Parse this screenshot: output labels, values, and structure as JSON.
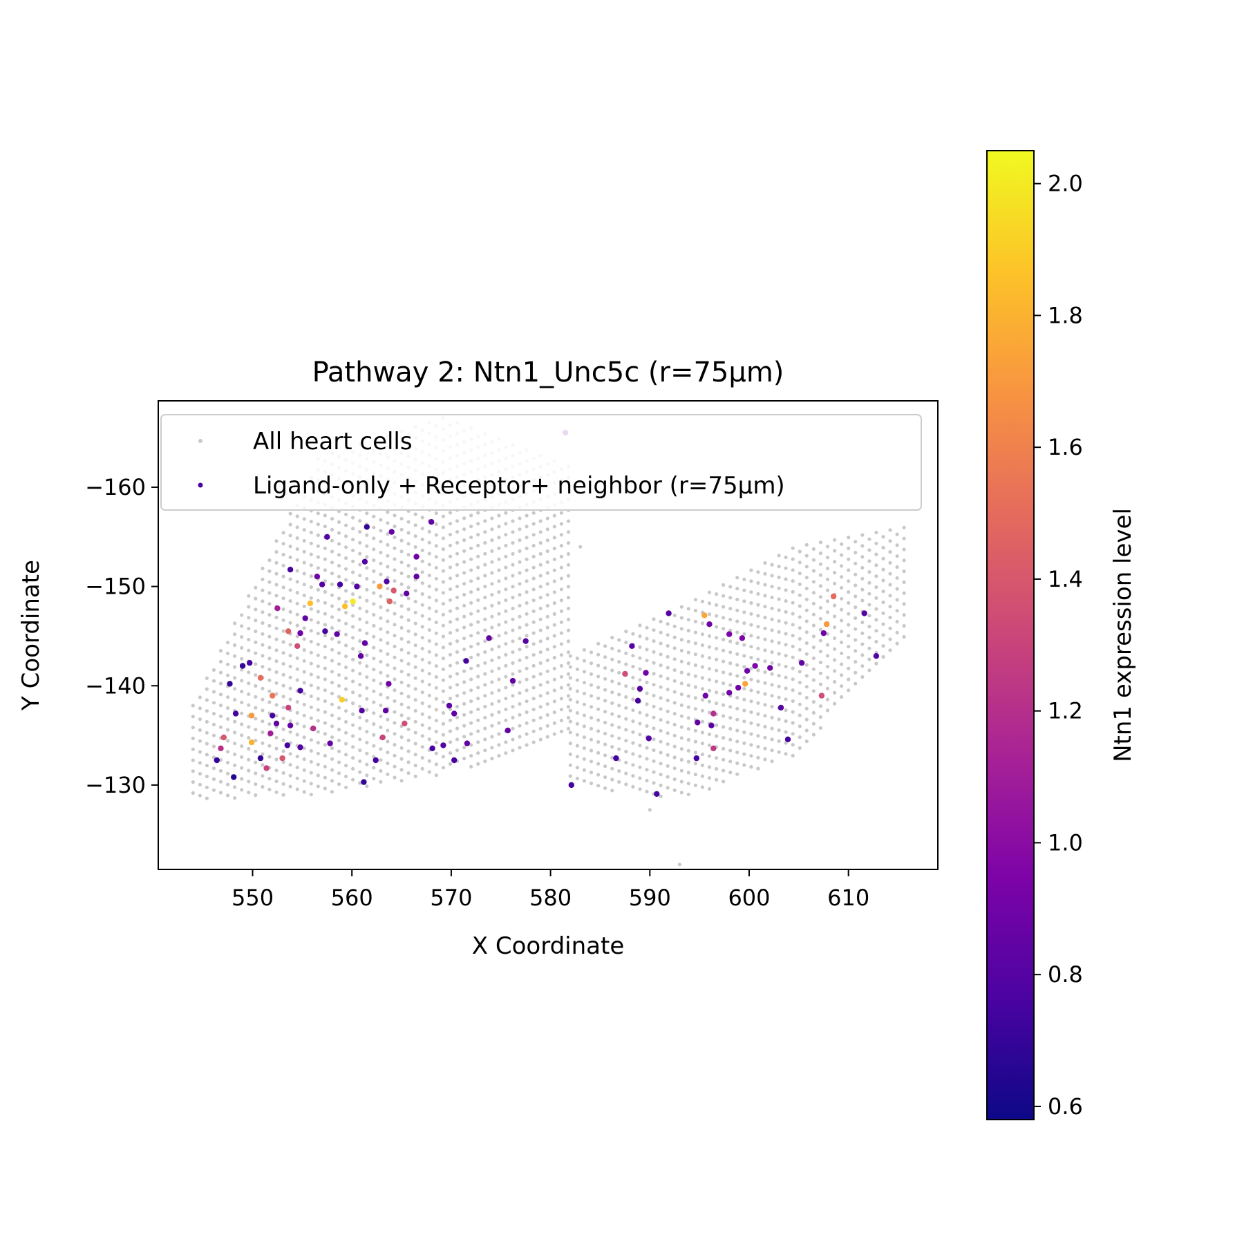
{
  "chart_data": {
    "type": "scatter",
    "title": "Pathway 2: Ntn1_Unc5c (r=75μm)",
    "xlabel": "X Coordinate",
    "ylabel": "Y Coordinate",
    "xlim": [
      540.5,
      619
    ],
    "ylim": [
      -168.7,
      -121.5
    ],
    "y_inverted": true,
    "x_ticks": [
      550,
      560,
      570,
      580,
      590,
      600,
      610
    ],
    "y_ticks": [
      -160,
      -150,
      -140,
      -130
    ],
    "grid": false,
    "legend_position": "upper-left",
    "legend": [
      {
        "label": "All heart cells",
        "color": "#c8c8c8"
      },
      {
        "label": "Ligand-only + Receptor+ neighbor (r=75μm)",
        "color": "#4b03a1"
      }
    ],
    "colorbar": {
      "label": "Ntn1 expression level",
      "colormap": "plasma",
      "min": 0.58,
      "max": 2.05,
      "ticks": [
        0.6,
        0.8,
        1.0,
        1.2,
        1.4,
        1.6,
        1.8,
        2.0
      ]
    },
    "background_series": {
      "name": "All heart cells",
      "color": "#c8c8c8",
      "regions": [
        {
          "x": [
            544,
            582
          ],
          "y_top": [
            -138,
            -163,
            -167,
            -162
          ],
          "y_bottom": [
            -128.5,
            -129,
            -131,
            -135
          ]
        },
        {
          "x": [
            582,
            616
          ],
          "y_top": [
            -143,
            -148,
            -154,
            -156
          ],
          "y_bottom": [
            -130,
            -128.5,
            -133,
            -145
          ]
        }
      ],
      "sparse_points": [
        [
          581.5,
          -165.5
        ],
        [
          583,
          -154
        ],
        [
          590,
          -127.5
        ],
        [
          593,
          -122
        ]
      ]
    },
    "ligand_points": [
      [
        581.5,
        -165.5,
        0.9
      ],
      [
        561.5,
        -156,
        0.7
      ],
      [
        557.5,
        -155,
        0.8
      ],
      [
        564,
        -155.5,
        0.85
      ],
      [
        568,
        -156.5,
        0.85
      ],
      [
        566.5,
        -153,
        0.9
      ],
      [
        561.3,
        -152.5,
        0.8
      ],
      [
        553.8,
        -151.7,
        0.75
      ],
      [
        556.5,
        -151,
        0.9
      ],
      [
        566.5,
        -151,
        0.85
      ],
      [
        557,
        -150.2,
        0.8
      ],
      [
        558.8,
        -150.2,
        0.75
      ],
      [
        560.5,
        -150,
        0.8
      ],
      [
        562.8,
        -150,
        1.7
      ],
      [
        563.5,
        -150.5,
        0.8
      ],
      [
        564.2,
        -149.6,
        1.4
      ],
      [
        565.5,
        -149.3,
        0.85
      ],
      [
        555.8,
        -148.3,
        1.85
      ],
      [
        559.3,
        -148,
        1.85
      ],
      [
        560.1,
        -148.5,
        2.0
      ],
      [
        563.8,
        -148.5,
        1.45
      ],
      [
        552.5,
        -147.8,
        1.1
      ],
      [
        555.3,
        -146.8,
        0.85
      ],
      [
        553.6,
        -145.5,
        1.45
      ],
      [
        554.8,
        -145.3,
        0.9
      ],
      [
        557.3,
        -145.5,
        0.75
      ],
      [
        558.5,
        -145.2,
        0.85
      ],
      [
        554.5,
        -144,
        1.35
      ],
      [
        561.3,
        -144.3,
        0.85
      ],
      [
        573.8,
        -144.8,
        0.85
      ],
      [
        577.5,
        -144.5,
        0.8
      ],
      [
        560.9,
        -143,
        0.85
      ],
      [
        571.5,
        -142.5,
        0.75
      ],
      [
        549,
        -142,
        0.7
      ],
      [
        549.7,
        -142.3,
        0.75
      ],
      [
        550.8,
        -140.8,
        1.5
      ],
      [
        547.7,
        -140.2,
        0.7
      ],
      [
        563.7,
        -140.2,
        0.9
      ],
      [
        576.2,
        -140.5,
        0.85
      ],
      [
        554.8,
        -139.5,
        0.75
      ],
      [
        552,
        -139,
        1.55
      ],
      [
        559,
        -138.6,
        1.9
      ],
      [
        553.6,
        -137.8,
        1.3
      ],
      [
        569.8,
        -138,
        0.85
      ],
      [
        548.3,
        -137.2,
        0.75
      ],
      [
        549.9,
        -137,
        1.7
      ],
      [
        552,
        -137,
        0.75
      ],
      [
        561,
        -137.5,
        0.8
      ],
      [
        563.4,
        -137.5,
        0.85
      ],
      [
        570.3,
        -137.2,
        0.85
      ],
      [
        552.4,
        -136.2,
        0.85
      ],
      [
        565.3,
        -136.2,
        1.35
      ],
      [
        553.8,
        -136,
        0.85
      ],
      [
        556.1,
        -135.7,
        1.2
      ],
      [
        551.8,
        -135.2,
        1.1
      ],
      [
        563.1,
        -134.8,
        1.3
      ],
      [
        547.1,
        -134.8,
        1.4
      ],
      [
        575.7,
        -135.5,
        0.85
      ],
      [
        549.9,
        -134.3,
        1.8
      ],
      [
        553.5,
        -134,
        0.75
      ],
      [
        554.8,
        -133.8,
        0.8
      ],
      [
        557.8,
        -134.2,
        0.85
      ],
      [
        569.2,
        -134,
        0.8
      ],
      [
        571.6,
        -134.2,
        0.85
      ],
      [
        568.1,
        -133.7,
        0.75
      ],
      [
        546.8,
        -133.7,
        1.2
      ],
      [
        550.8,
        -132.7,
        0.7
      ],
      [
        553,
        -132.7,
        1.4
      ],
      [
        562.4,
        -132.5,
        0.75
      ],
      [
        570.3,
        -132.5,
        0.75
      ],
      [
        546.4,
        -132.5,
        0.7
      ],
      [
        551.4,
        -131.7,
        1.3
      ],
      [
        548.1,
        -130.8,
        0.65
      ],
      [
        561.2,
        -130.3,
        0.7
      ],
      [
        582.1,
        -130,
        0.75
      ],
      [
        590.7,
        -129.1,
        0.75
      ],
      [
        586.6,
        -132.7,
        0.75
      ],
      [
        591.9,
        -147.3,
        0.8
      ],
      [
        588.2,
        -144,
        0.8
      ],
      [
        587.5,
        -141.2,
        1.35
      ],
      [
        589.6,
        -141.3,
        0.9
      ],
      [
        589,
        -139.7,
        0.8
      ],
      [
        588.8,
        -138.5,
        0.75
      ],
      [
        595.5,
        -147.1,
        1.75
      ],
      [
        596,
        -146.2,
        0.9
      ],
      [
        598,
        -145.2,
        0.95
      ],
      [
        599.3,
        -144.8,
        0.95
      ],
      [
        599.8,
        -141.5,
        0.9
      ],
      [
        600.6,
        -142,
        0.95
      ],
      [
        602.1,
        -141.8,
        0.9
      ],
      [
        605.3,
        -142.3,
        0.85
      ],
      [
        599.6,
        -140.2,
        1.75
      ],
      [
        598.9,
        -139.8,
        0.9
      ],
      [
        598,
        -139.3,
        0.9
      ],
      [
        595.6,
        -139,
        0.9
      ],
      [
        596.4,
        -137.2,
        1.2
      ],
      [
        603.2,
        -137.8,
        0.8
      ],
      [
        607.3,
        -139,
        1.35
      ],
      [
        594.8,
        -136.3,
        0.85
      ],
      [
        596.2,
        -136,
        0.8
      ],
      [
        589.9,
        -134.7,
        0.8
      ],
      [
        596.4,
        -133.7,
        1.25
      ],
      [
        603.9,
        -134.6,
        0.75
      ],
      [
        594.7,
        -132.7,
        0.75
      ],
      [
        607.5,
        -145.3,
        0.9
      ],
      [
        607.8,
        -146.2,
        1.7
      ],
      [
        608.5,
        -149,
        1.5
      ],
      [
        611.6,
        -147.3,
        0.8
      ],
      [
        612.8,
        -143,
        0.8
      ]
    ]
  }
}
